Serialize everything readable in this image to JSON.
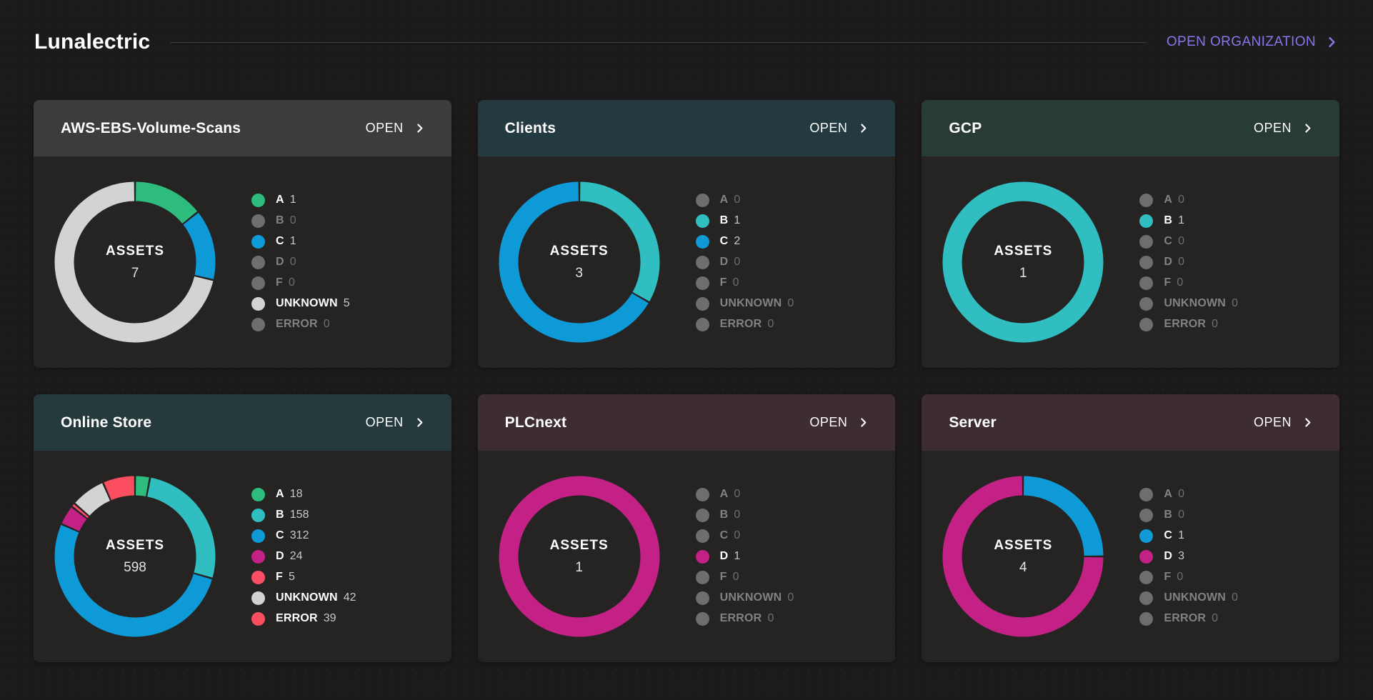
{
  "page": {
    "title": "Lunalectric",
    "open_org_label": "OPEN ORGANIZATION",
    "assets_label": "ASSETS",
    "accent_purple": "#8a75ee",
    "open_label": "OPEN"
  },
  "grades": [
    "A",
    "B",
    "C",
    "D",
    "F",
    "UNKNOWN",
    "ERROR"
  ],
  "grade_colors": {
    "A": "#2dbc7e",
    "B": "#31bec1",
    "C": "#0e9ad6",
    "D": "#c42186",
    "F": "#fb4d66",
    "UNKNOWN": "#d3d3d3",
    "ERROR": "#fb4f5f"
  },
  "inactive_dot_color": "#6e6e6e",
  "cards": [
    {
      "title": "AWS-EBS-Volume-Scans",
      "header_tint": "#3d3b3b",
      "assets_total": "7",
      "counts": {
        "A": 1,
        "B": 0,
        "C": 1,
        "D": 0,
        "F": 0,
        "UNKNOWN": 5,
        "ERROR": 0
      }
    },
    {
      "title": "Clients",
      "header_tint": "#243a41",
      "assets_total": "3",
      "counts": {
        "A": 0,
        "B": 1,
        "C": 2,
        "D": 0,
        "F": 0,
        "UNKNOWN": 0,
        "ERROR": 0
      }
    },
    {
      "title": "GCP",
      "header_tint": "#293b37",
      "assets_total": "1",
      "counts": {
        "A": 0,
        "B": 1,
        "C": 0,
        "D": 0,
        "F": 0,
        "UNKNOWN": 0,
        "ERROR": 0
      }
    },
    {
      "title": "Online Store",
      "header_tint": "#253a3d",
      "assets_total": "598",
      "counts": {
        "A": 18,
        "B": 158,
        "C": 312,
        "D": 24,
        "F": 5,
        "UNKNOWN": 42,
        "ERROR": 39
      }
    },
    {
      "title": "PLCnext",
      "header_tint": "#3e2c35",
      "assets_total": "1",
      "counts": {
        "A": 0,
        "B": 0,
        "C": 0,
        "D": 1,
        "F": 0,
        "UNKNOWN": 0,
        "ERROR": 0
      }
    },
    {
      "title": "Server",
      "header_tint": "#3e2c35",
      "assets_total": "4",
      "counts": {
        "A": 0,
        "B": 0,
        "C": 1,
        "D": 3,
        "F": 0,
        "UNKNOWN": 0,
        "ERROR": 0
      }
    }
  ]
}
